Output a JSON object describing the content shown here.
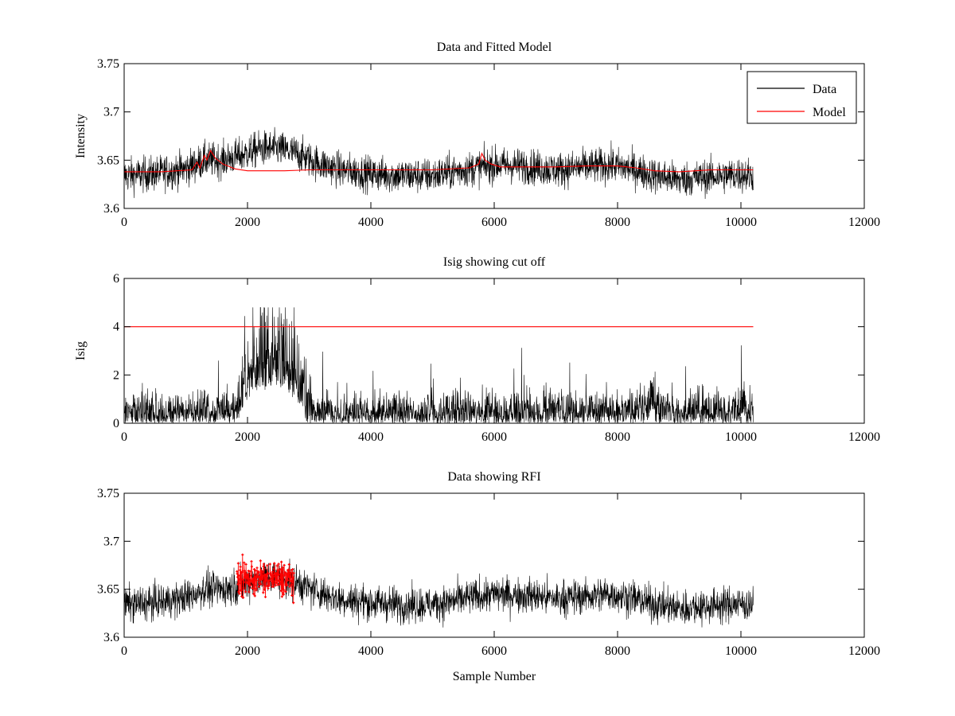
{
  "figure": {
    "xlabel": "Sample Number"
  },
  "chart_data": [
    {
      "type": "line",
      "title": "Data and Fitted Model",
      "xlabel": "",
      "ylabel": "Intensity",
      "xlim": [
        0,
        12000
      ],
      "ylim": [
        3.6,
        3.75
      ],
      "xticks": [
        0,
        2000,
        4000,
        6000,
        8000,
        10000,
        12000
      ],
      "yticks": [
        3.6,
        3.65,
        3.7,
        3.75
      ],
      "xtick_labels": [
        "0",
        "2000",
        "4000",
        "6000",
        "8000",
        "10000",
        "12000"
      ],
      "ytick_labels": [
        "3.6",
        "3.65",
        "3.7",
        "3.75"
      ],
      "legend": {
        "placement": "top-right",
        "entries": [
          {
            "label": "Data",
            "color": "#000000"
          },
          {
            "label": "Model",
            "color": "#ff0000"
          }
        ]
      },
      "series": [
        {
          "name": "Data",
          "color": "#000000",
          "style": "noisy-line",
          "x_range": [
            0,
            10200
          ],
          "noise": 0.009,
          "baseline": [
            [
              0,
              3.634
            ],
            [
              500,
              3.636
            ],
            [
              1000,
              3.641
            ],
            [
              1300,
              3.65
            ],
            [
              1600,
              3.65
            ],
            [
              1900,
              3.655
            ],
            [
              2200,
              3.662
            ],
            [
              2500,
              3.662
            ],
            [
              2800,
              3.657
            ],
            [
              3100,
              3.648
            ],
            [
              3500,
              3.64
            ],
            [
              4000,
              3.636
            ],
            [
              4500,
              3.634
            ],
            [
              5000,
              3.634
            ],
            [
              5500,
              3.64
            ],
            [
              6000,
              3.645
            ],
            [
              6500,
              3.644
            ],
            [
              7000,
              3.64
            ],
            [
              7500,
              3.643
            ],
            [
              7900,
              3.645
            ],
            [
              8300,
              3.64
            ],
            [
              8600,
              3.634
            ],
            [
              9000,
              3.63
            ],
            [
              9500,
              3.633
            ],
            [
              10000,
              3.635
            ],
            [
              10200,
              3.634
            ]
          ]
        },
        {
          "name": "Model",
          "color": "#ff0000",
          "style": "line",
          "points": [
            [
              0,
              3.638
            ],
            [
              600,
              3.638
            ],
            [
              1100,
              3.64
            ],
            [
              1180,
              3.648
            ],
            [
              1230,
              3.642
            ],
            [
              1300,
              3.655
            ],
            [
              1340,
              3.65
            ],
            [
              1400,
              3.66
            ],
            [
              1480,
              3.652
            ],
            [
              1600,
              3.646
            ],
            [
              1800,
              3.641
            ],
            [
              2000,
              3.639
            ],
            [
              2600,
              3.639
            ],
            [
              3000,
              3.64
            ],
            [
              4000,
              3.64
            ],
            [
              5000,
              3.64
            ],
            [
              5600,
              3.642
            ],
            [
              5750,
              3.646
            ],
            [
              5800,
              3.657
            ],
            [
              5850,
              3.65
            ],
            [
              5950,
              3.646
            ],
            [
              6100,
              3.643
            ],
            [
              6500,
              3.643
            ],
            [
              7000,
              3.643
            ],
            [
              7500,
              3.644
            ],
            [
              8000,
              3.644
            ],
            [
              8300,
              3.642
            ],
            [
              8600,
              3.639
            ],
            [
              9000,
              3.638
            ],
            [
              9500,
              3.64
            ],
            [
              10200,
              3.64
            ]
          ]
        }
      ]
    },
    {
      "type": "line",
      "title": "Isig showing cut off",
      "xlabel": "",
      "ylabel": "Isig",
      "xlim": [
        0,
        12000
      ],
      "ylim": [
        0,
        6
      ],
      "xticks": [
        0,
        2000,
        4000,
        6000,
        8000,
        10000,
        12000
      ],
      "yticks": [
        0,
        2,
        4,
        6
      ],
      "xtick_labels": [
        "0",
        "2000",
        "4000",
        "6000",
        "8000",
        "10000",
        "12000"
      ],
      "ytick_labels": [
        "0",
        "2",
        "4",
        "6"
      ],
      "series": [
        {
          "name": "Isig",
          "color": "#000000",
          "style": "noisy-positive",
          "x_range": [
            0,
            10200
          ],
          "scale": [
            [
              0,
              1.0
            ],
            [
              1800,
              1.0
            ],
            [
              2000,
              2.2
            ],
            [
              2200,
              2.7
            ],
            [
              2600,
              2.6
            ],
            [
              2800,
              2.1
            ],
            [
              3000,
              1.2
            ],
            [
              3200,
              1.0
            ],
            [
              8400,
              1.0
            ],
            [
              8550,
              1.6
            ],
            [
              8700,
              1.1
            ],
            [
              10200,
              1.0
            ]
          ]
        },
        {
          "name": "Cut off",
          "color": "#ff0000",
          "style": "line",
          "points": [
            [
              0,
              4
            ],
            [
              10200,
              4
            ]
          ]
        }
      ]
    },
    {
      "type": "line",
      "title": "Data showing RFI",
      "xlabel": "Sample Number",
      "ylabel": "",
      "xlim": [
        0,
        12000
      ],
      "ylim": [
        3.6,
        3.75
      ],
      "xticks": [
        0,
        2000,
        4000,
        6000,
        8000,
        10000,
        12000
      ],
      "yticks": [
        3.6,
        3.65,
        3.7,
        3.75
      ],
      "xtick_labels": [
        "0",
        "2000",
        "4000",
        "6000",
        "8000",
        "10000",
        "12000"
      ],
      "ytick_labels": [
        "3.6",
        "3.65",
        "3.7",
        "3.75"
      ],
      "series": [
        {
          "name": "Data",
          "color": "#000000",
          "style": "noisy-line",
          "x_range": [
            0,
            10200
          ],
          "noise": 0.009,
          "baseline": [
            [
              0,
              3.634
            ],
            [
              500,
              3.636
            ],
            [
              1000,
              3.641
            ],
            [
              1300,
              3.65
            ],
            [
              1600,
              3.65
            ],
            [
              1900,
              3.655
            ],
            [
              2200,
              3.662
            ],
            [
              2500,
              3.662
            ],
            [
              2800,
              3.657
            ],
            [
              3100,
              3.648
            ],
            [
              3500,
              3.64
            ],
            [
              4000,
              3.636
            ],
            [
              4500,
              3.634
            ],
            [
              5000,
              3.634
            ],
            [
              5500,
              3.64
            ],
            [
              6000,
              3.645
            ],
            [
              6500,
              3.644
            ],
            [
              7000,
              3.64
            ],
            [
              7500,
              3.643
            ],
            [
              7900,
              3.645
            ],
            [
              8300,
              3.64
            ],
            [
              8600,
              3.634
            ],
            [
              9000,
              3.63
            ],
            [
              9500,
              3.633
            ],
            [
              10000,
              3.635
            ],
            [
              10200,
              3.634
            ]
          ]
        },
        {
          "name": "RFI",
          "color": "#ff0000",
          "style": "markers",
          "x_range": [
            1830,
            2750
          ],
          "center": 3.661,
          "spread": 0.009
        }
      ]
    }
  ]
}
